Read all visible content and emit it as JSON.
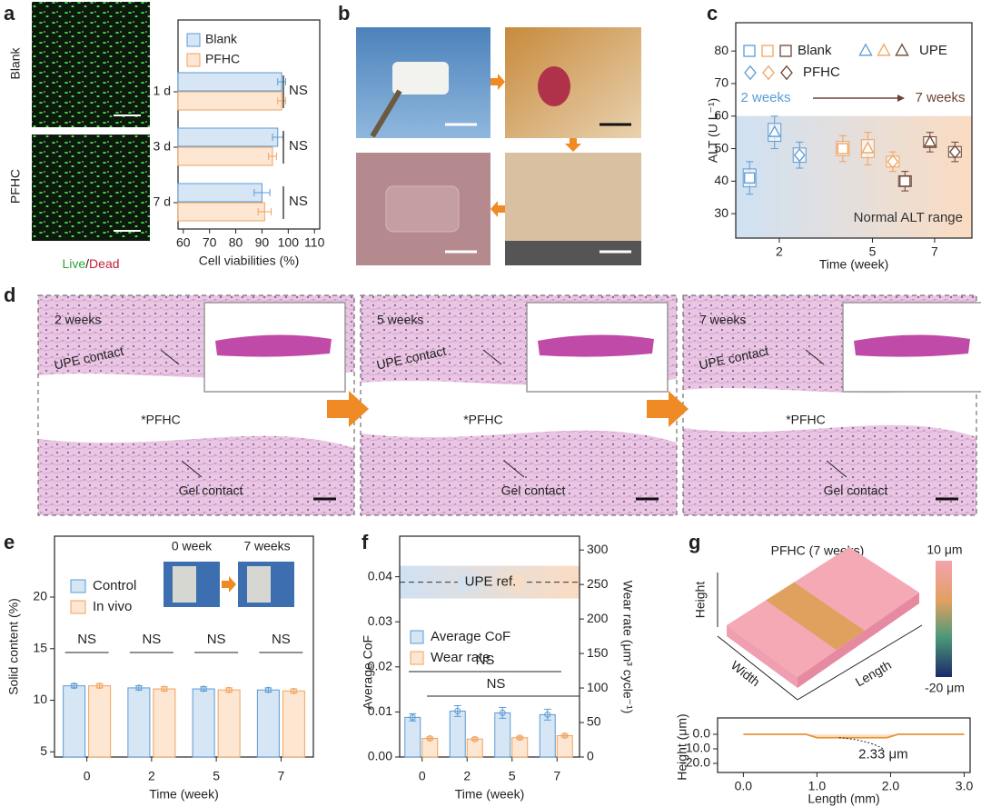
{
  "panel_labels": [
    "a",
    "b",
    "c",
    "d",
    "e",
    "f",
    "g"
  ],
  "panel_a": {
    "row_labels": [
      "Blank",
      "PFHC"
    ],
    "stain_live": "Live",
    "stain_sep": "/",
    "stain_dead": "Dead"
  },
  "panel_d": {
    "images": [
      {
        "time": "2 weeks",
        "upper": "UPE contact",
        "middle": "*PFHC",
        "lower": "Gel contact"
      },
      {
        "time": "5 weeks",
        "upper": "UPE contact",
        "middle": "*PFHC",
        "lower": "Gel contact"
      },
      {
        "time": "7 weeks",
        "upper": "UPE contact",
        "middle": "*PFHC",
        "lower": "Gel contact"
      }
    ]
  },
  "panel_e_inset": {
    "left": "0 week",
    "right": "7 weeks"
  },
  "panel_g_surface": {
    "title": "PFHC (7 weeks)",
    "axes": [
      "Height",
      "Width",
      "Length"
    ],
    "colorbar": [
      "10 μm",
      "-20 μm"
    ]
  },
  "chart_data": [
    {
      "type": "hbar",
      "categories": [
        "1 d",
        "3 d",
        "7 d"
      ],
      "series": [
        {
          "name": "Blank",
          "color": "#5b9bd5",
          "fill": "#d6e6f5",
          "values": [
            97.5,
            96,
            90
          ],
          "errors": [
            1.5,
            2,
            3
          ]
        },
        {
          "name": "PFHC",
          "color": "#f0a35e",
          "fill": "#fde6d2",
          "values": [
            97.5,
            94,
            91
          ],
          "errors": [
            1.5,
            1.5,
            2.5
          ]
        }
      ],
      "xlim": [
        58,
        112
      ],
      "xticks": [
        60,
        70,
        80,
        90,
        100,
        110
      ],
      "xlabel": "Cell viabilities (%)",
      "annotations": [
        "NS",
        "NS",
        "NS"
      ]
    },
    {
      "type": "box",
      "x": [
        2,
        5,
        7
      ],
      "xlim": [
        0.6,
        8.2
      ],
      "xticks": [
        2,
        5,
        7
      ],
      "ylim": [
        22.5,
        88.7
      ],
      "yticks": [
        30,
        40,
        50,
        60,
        70,
        80
      ],
      "ylabel": "ALT (U L⁻¹)",
      "xlabel": "Time (week)",
      "category_colors": [
        "#5b9bd5",
        "#f0a35e",
        "#6b4434"
      ],
      "series": [
        {
          "name": "Blank",
          "marker": "square",
          "values": [
            41,
            50,
            40
          ],
          "errors": [
            5,
            4,
            3
          ]
        },
        {
          "name": "UPE",
          "marker": "triangle",
          "values": [
            55,
            50,
            52
          ],
          "errors": [
            5,
            5,
            3
          ]
        },
        {
          "name": "PFHC",
          "marker": "diamond",
          "values": [
            48,
            46,
            49
          ],
          "errors": [
            4,
            3,
            3
          ]
        }
      ],
      "normal_range_upper": 60,
      "annotations": [
        "2 weeks",
        "7 weeks",
        "Normal ALT range"
      ]
    },
    {
      "type": "bar",
      "categories": [
        "0",
        "2",
        "5",
        "7"
      ],
      "ylim": [
        4.5,
        25.9
      ],
      "yticks": [
        5,
        10,
        15,
        20
      ],
      "ylabel": "Solid content (%)",
      "xlabel": "Time (week)",
      "series": [
        {
          "name": "Control",
          "color": "#5b9bd5",
          "fill": "#d6e6f5",
          "values": [
            11.4,
            11.2,
            11.1,
            11.0
          ],
          "errors": [
            0.2,
            0.2,
            0.2,
            0.2
          ]
        },
        {
          "name": "In vivo",
          "color": "#f0a35e",
          "fill": "#fde6d2",
          "values": [
            11.4,
            11.1,
            11.0,
            10.9
          ],
          "errors": [
            0.2,
            0.2,
            0.2,
            0.2
          ]
        }
      ],
      "annotations": [
        "NS",
        "NS",
        "NS",
        "NS"
      ]
    },
    {
      "type": "bar_dual",
      "categories": [
        "0",
        "2",
        "5",
        "7"
      ],
      "ylim": [
        0,
        0.049
      ],
      "yticks": [
        {
          "value": 0,
          "label": "0.00"
        },
        0.01,
        0.02,
        0.03,
        0.04
      ],
      "y2lim": [
        0,
        320
      ],
      "y2ticks": [
        0,
        50,
        100,
        150,
        200,
        250,
        300
      ],
      "ylabel": "Average CoF",
      "y2label": "Wear rate (μm³ cycle⁻¹)",
      "xlabel": "Time (week)",
      "series": [
        {
          "name": "Average CoF",
          "color": "#5b9bd5",
          "fill": "#d6e6f5",
          "values": [
            0.0088,
            0.0102,
            0.0098,
            0.0094
          ],
          "errors": [
            0.0008,
            0.0012,
            0.0012,
            0.0012
          ]
        },
        {
          "name": "Wear rate",
          "axis": "y2",
          "color": "#f0a35e",
          "fill": "#fde6d2",
          "values": [
            27,
            26,
            28,
            31
          ],
          "errors": [
            2,
            2,
            2,
            2
          ]
        }
      ],
      "reference": {
        "value": 0.0388,
        "label": "UPE ref."
      },
      "annotations": [
        "NS",
        "NS"
      ]
    },
    {
      "type": "line",
      "x": [
        0,
        0.85,
        1.0,
        1.95,
        2.1,
        3.0
      ],
      "values": [
        0,
        0,
        -2.33,
        -2.33,
        0,
        0
      ],
      "color": "#e8943a",
      "xlim": [
        -0.35,
        3.08
      ],
      "xticks": [
        {
          "value": 0,
          "label": "0.0"
        },
        {
          "value": 1,
          "label": "1.0"
        },
        {
          "value": 2,
          "label": "2.0"
        },
        {
          "value": 3,
          "label": "3.0"
        }
      ],
      "ylim": [
        -26.25,
        11.25
      ],
      "yticks": [
        {
          "value": 0,
          "label": "0.0"
        },
        {
          "value": -10,
          "label": "-10.0"
        },
        {
          "value": -20,
          "label": "-20.0"
        }
      ],
      "xlabel": "Length (mm)",
      "ylabel": "Height (μm)",
      "annotation": "2.33 μm"
    }
  ]
}
